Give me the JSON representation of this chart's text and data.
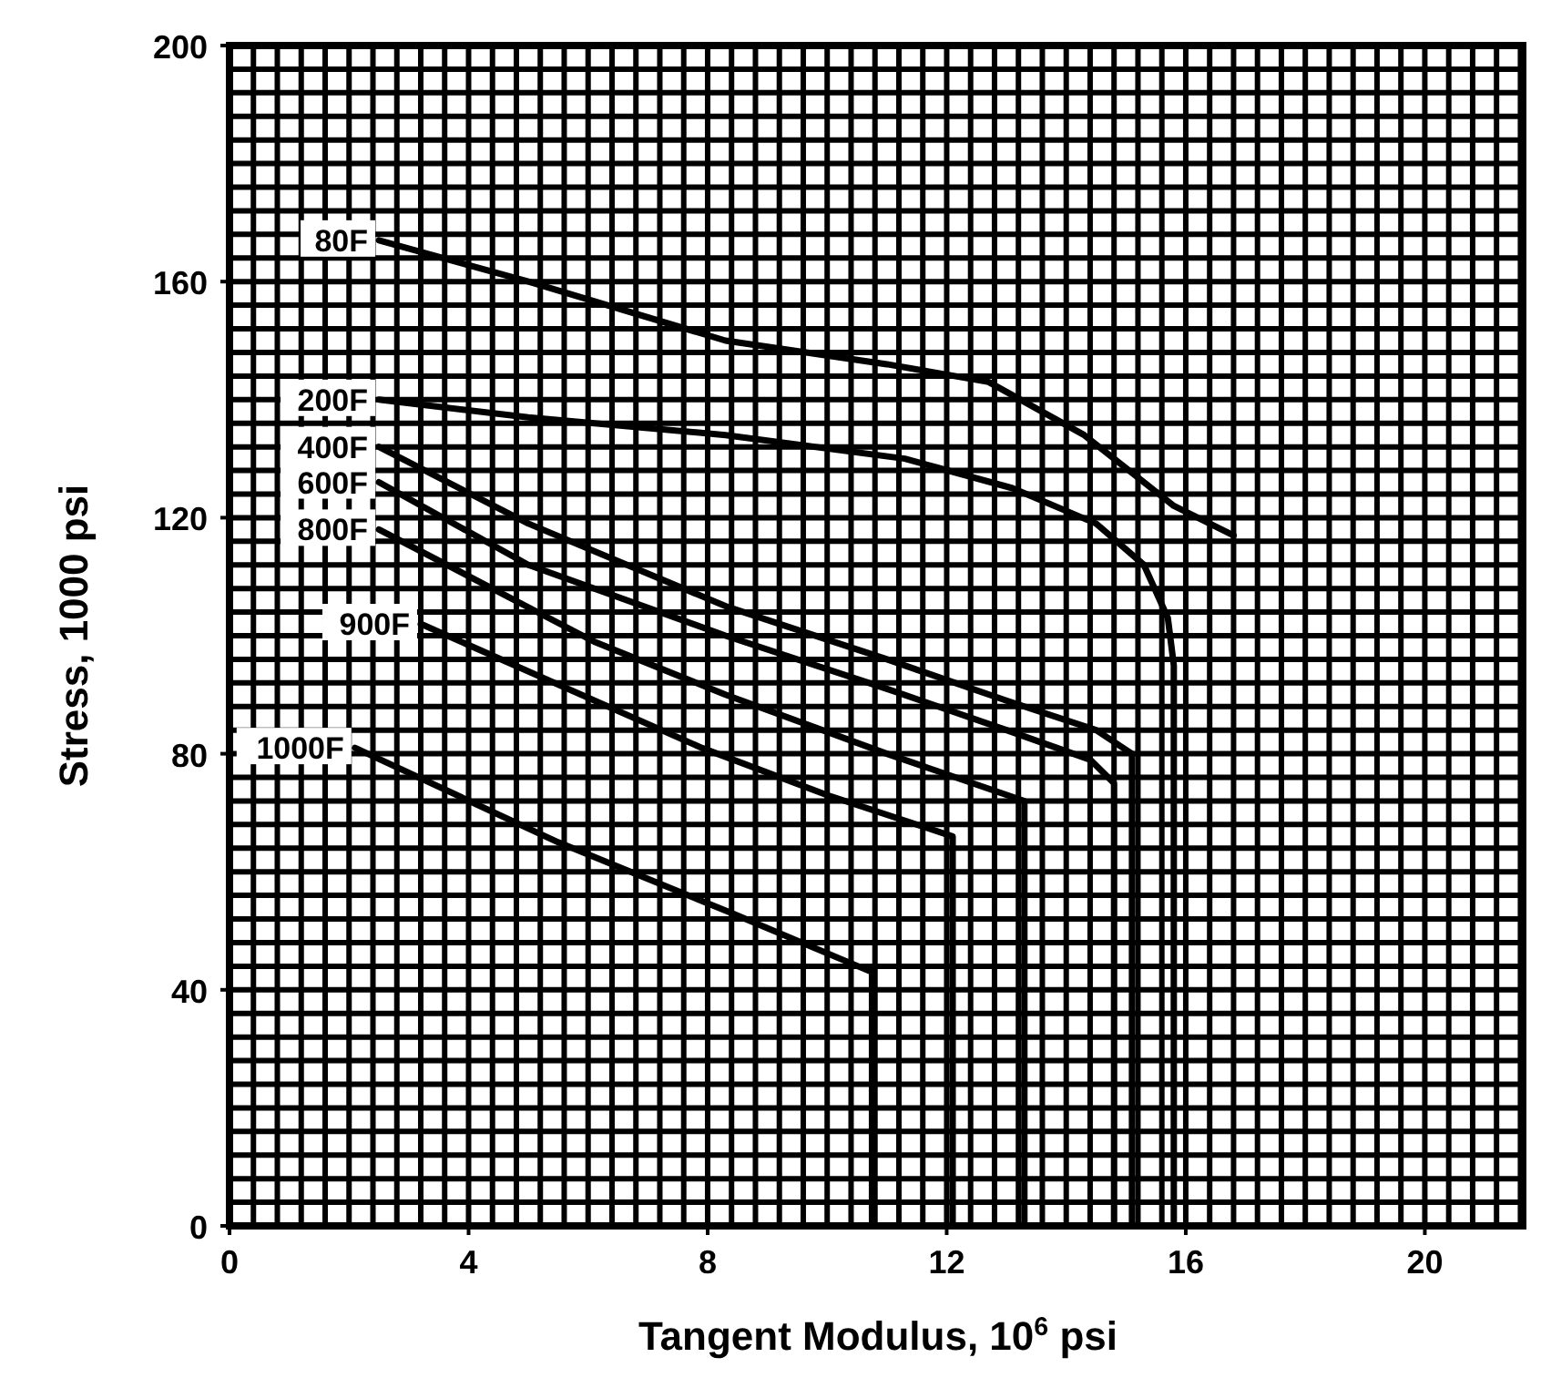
{
  "chart_data": {
    "type": "line",
    "xlabel": "Tangent Modulus, 10$^{6}$ psi",
    "ylabel": "Stress, 1000 psi",
    "xlim": [
      0,
      21.7
    ],
    "ylim": [
      0,
      200
    ],
    "xticks": [
      0,
      4,
      8,
      12,
      16,
      20
    ],
    "yticks": [
      0,
      40,
      80,
      120,
      160,
      200
    ],
    "grid": true,
    "series": [
      {
        "name": "80F",
        "color": "#000000",
        "x": [
          2.5,
          5,
          8.3,
          11,
          12.7,
          14.3,
          15.3,
          15.8,
          16.8
        ],
        "values": [
          167,
          160,
          150,
          146,
          143,
          134,
          126,
          122,
          117
        ]
      },
      {
        "name": "200F",
        "color": "#000000",
        "x": [
          2.5,
          5,
          8.3,
          11.3,
          13.1,
          14.5,
          15.3,
          15.7,
          15.8,
          15.8
        ],
        "values": [
          140,
          137,
          134,
          130,
          125,
          119,
          112,
          103,
          95,
          0
        ]
      },
      {
        "name": "400F",
        "color": "#000000",
        "x": [
          2.5,
          5,
          8.3,
          11,
          13,
          14.5,
          15.1,
          15.1
        ],
        "values": [
          132,
          119,
          105,
          96,
          89,
          84,
          80,
          0
        ]
      },
      {
        "name": "600F",
        "color": "#000000",
        "x": [
          2.5,
          5,
          8.3,
          11,
          13,
          14.4,
          14.8,
          14.8
        ],
        "values": [
          126,
          112,
          100,
          91,
          84,
          79,
          75,
          0
        ]
      },
      {
        "name": "800F",
        "color": "#000000",
        "x": [
          2.5,
          6.1,
          8.3,
          11,
          13.3,
          13.3
        ],
        "values": [
          118,
          99,
          90,
          80,
          72,
          0
        ]
      },
      {
        "name": "900F",
        "color": "#000000",
        "x": [
          3.2,
          7.9,
          10,
          12.1,
          12.1
        ],
        "values": [
          102,
          81,
          73,
          66,
          0
        ]
      },
      {
        "name": "1000F",
        "color": "#000000",
        "x": [
          2.1,
          5.5,
          8.4,
          10.75,
          10.75
        ],
        "values": [
          81,
          65,
          53,
          43,
          0
        ]
      }
    ]
  }
}
